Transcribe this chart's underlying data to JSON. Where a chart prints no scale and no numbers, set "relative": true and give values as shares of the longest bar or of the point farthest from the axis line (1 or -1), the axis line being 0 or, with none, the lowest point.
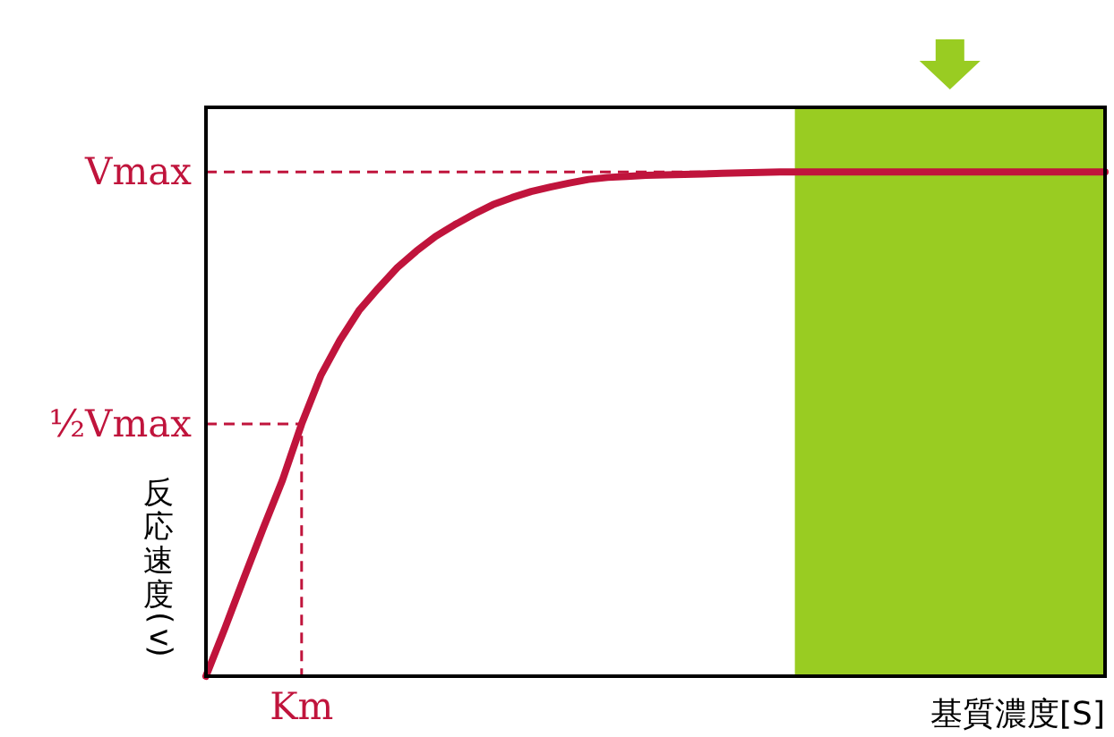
{
  "chart_data": {
    "type": "line",
    "relative": true,
    "xlabel": "基質濃度[S]",
    "ylabel": "反応速度(v)",
    "color": "#c0143c",
    "categories": [
      null,
      null,
      null,
      null,
      null,
      null,
      null,
      null,
      null,
      null,
      null,
      null,
      null,
      null,
      null,
      null,
      null,
      null,
      null,
      null,
      null,
      null,
      null,
      null,
      null,
      null,
      null,
      null,
      null,
      null,
      null,
      null,
      null,
      null,
      null,
      null,
      null,
      null,
      null,
      null,
      null,
      null,
      null,
      null,
      null,
      null,
      null,
      null
    ],
    "values": [
      0,
      0.096,
      0.196,
      0.294,
      0.389,
      0.5,
      0.596,
      0.666,
      0.725,
      0.769,
      0.81,
      0.843,
      0.872,
      0.895,
      0.916,
      0.935,
      0.949,
      0.961,
      0.97,
      0.978,
      0.985,
      0.989,
      0.991,
      0.993,
      0.994,
      0.995,
      0.996,
      0.997,
      0.998,
      0.999,
      1,
      1,
      1,
      1,
      1,
      1,
      1,
      1,
      1,
      1,
      1,
      1,
      1,
      1,
      1,
      1,
      1,
      1
    ],
    "ref_lines": [
      {
        "axis": "y",
        "value": 1,
        "label": "Vmax",
        "color": "#c0143c",
        "line_style": "dashed"
      },
      {
        "axis": "y",
        "value": 0.5,
        "label": "½Vmax",
        "color": "#c0143c",
        "line_style": "dashed"
      }
    ],
    "annotations": [
      "Km"
    ]
  }
}
